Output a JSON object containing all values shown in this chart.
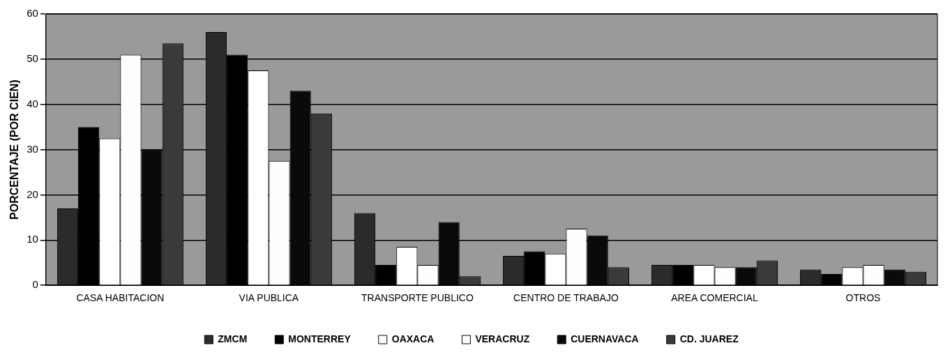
{
  "chart_data": {
    "type": "bar",
    "ylabel": "PORCENTAJE (POR CIEN)",
    "categories": [
      "CASA HABITACION",
      "VIA PUBLICA",
      "TRANSPORTE PUBLICO",
      "CENTRO DE TRABAJO",
      "AREA COMERCIAL",
      "OTROS"
    ],
    "series": [
      {
        "name": "ZMCM",
        "color": "#2b2b2b",
        "values": [
          17,
          56,
          16,
          6.5,
          4.5,
          3.5
        ]
      },
      {
        "name": "MONTERREY",
        "color": "#000000",
        "values": [
          35,
          51,
          4.5,
          7.5,
          4.5,
          2.5
        ]
      },
      {
        "name": "OAXACA",
        "color": "#ffffff",
        "values": [
          32.5,
          47.5,
          8.5,
          7,
          4.5,
          4
        ]
      },
      {
        "name": "VERACRUZ",
        "color": "#fefefe",
        "values": [
          51,
          27.5,
          4.5,
          12.5,
          4,
          4.5
        ]
      },
      {
        "name": "CUERNAVACA",
        "color": "#0a0a0a",
        "values": [
          30,
          43,
          14,
          11,
          4,
          3.5
        ]
      },
      {
        "name": "CD. JUAREZ",
        "color": "#3a3a3a",
        "values": [
          53.5,
          38,
          2,
          4,
          5.5,
          3
        ]
      }
    ],
    "ylim": [
      0,
      60
    ],
    "yticks": [
      0,
      10,
      20,
      30,
      40,
      50,
      60
    ],
    "grid": "y",
    "legend": "bottom"
  }
}
